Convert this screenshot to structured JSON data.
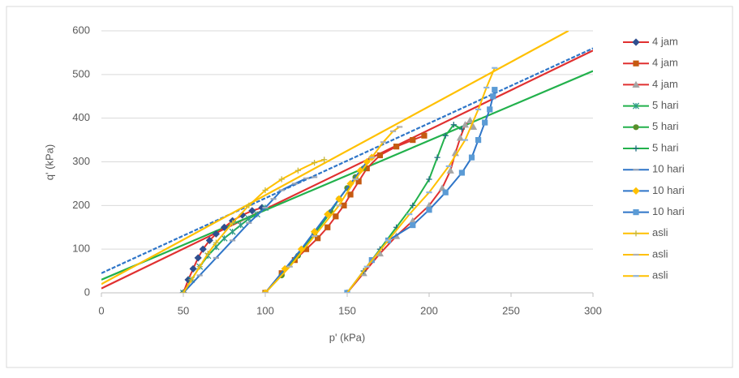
{
  "chart_data": {
    "type": "scatter",
    "xlabel": "p' (kPa)",
    "ylabel": "q' (kPa)",
    "xlim": [
      0,
      300
    ],
    "xticks": [
      0,
      50,
      100,
      150,
      200,
      250,
      300
    ],
    "ylim": [
      0,
      600
    ],
    "yticks": [
      0,
      100,
      200,
      300,
      400,
      500,
      600
    ],
    "grid": true,
    "legend": "right",
    "series": [
      {
        "name": "4 jam",
        "color": "#e03030",
        "marker": "diamond",
        "marker_color": "#2f4f8f",
        "x": [
          50,
          53,
          56,
          59,
          62,
          66,
          70,
          75,
          80,
          86,
          92,
          98
        ],
        "values": [
          0,
          30,
          55,
          80,
          100,
          120,
          135,
          150,
          165,
          178,
          188,
          195
        ]
      },
      {
        "name": "4 jam",
        "color": "#e03030",
        "marker": "square",
        "marker_color": "#c55a11",
        "x": [
          100,
          110,
          118,
          125,
          132,
          138,
          143,
          148,
          152,
          157,
          162,
          170,
          180,
          190,
          197
        ],
        "values": [
          0,
          45,
          75,
          100,
          125,
          150,
          175,
          200,
          225,
          255,
          285,
          315,
          335,
          350,
          360
        ]
      },
      {
        "name": "4 jam",
        "color": "#e03030",
        "marker": "triangle",
        "marker_color": "#a5a5a5",
        "x": [
          150,
          160,
          170,
          180,
          190,
          200,
          208,
          213,
          216,
          219,
          222,
          225,
          227
        ],
        "values": [
          0,
          45,
          90,
          130,
          165,
          200,
          240,
          280,
          320,
          355,
          385,
          395,
          380
        ]
      },
      {
        "name": "5 hari",
        "color": "#22b14c",
        "marker": "star",
        "marker_color": "#2e9a8a",
        "x": [
          50,
          55,
          60,
          65,
          70,
          75,
          80,
          85,
          90,
          95,
          100
        ],
        "values": [
          0,
          30,
          60,
          85,
          105,
          125,
          140,
          155,
          170,
          180,
          195
        ]
      },
      {
        "name": "5 hari",
        "color": "#22b14c",
        "marker": "circle",
        "marker_color": "#5a8f2a",
        "x": [
          100,
          110,
          120,
          130,
          140,
          145,
          150,
          155,
          160
        ],
        "values": [
          0,
          40,
          85,
          135,
          185,
          215,
          240,
          265,
          285
        ]
      },
      {
        "name": "5 hari",
        "color": "#22b14c",
        "marker": "plus",
        "marker_color": "#1f6f7f",
        "x": [
          150,
          160,
          170,
          180,
          190,
          200,
          205,
          210,
          215,
          220
        ],
        "values": [
          0,
          50,
          100,
          150,
          200,
          260,
          310,
          360,
          385,
          375
        ]
      },
      {
        "name": "10 hari",
        "color": "#2e75c8",
        "marker": "dash",
        "marker_color": "#9aa6b8",
        "x": [
          50,
          60,
          70,
          80,
          90,
          100,
          105,
          110,
          118,
          125,
          130
        ],
        "values": [
          0,
          40,
          80,
          120,
          160,
          195,
          215,
          235,
          250,
          262,
          265
        ]
      },
      {
        "name": "10 hari",
        "color": "#2e75c8",
        "marker": "diamond",
        "marker_color": "#ffc000",
        "x": [
          100,
          112,
          122,
          130,
          138,
          145,
          152,
          158,
          162,
          165
        ],
        "values": [
          0,
          55,
          100,
          140,
          180,
          215,
          250,
          280,
          300,
          310
        ]
      },
      {
        "name": "10 hari",
        "color": "#2e75c8",
        "marker": "square",
        "marker_color": "#5b9bd5",
        "x": [
          150,
          165,
          175,
          190,
          200,
          210,
          220,
          226,
          230,
          234,
          237,
          239,
          240
        ],
        "values": [
          0,
          75,
          120,
          155,
          190,
          230,
          275,
          310,
          350,
          390,
          420,
          450,
          465
        ]
      },
      {
        "name": "asli",
        "color": "#ffc000",
        "marker": "plus",
        "marker_color": "#c9b838",
        "x": [
          50,
          55,
          60,
          65,
          70,
          80,
          90,
          100,
          110,
          120,
          130,
          136
        ],
        "values": [
          0,
          30,
          60,
          90,
          115,
          160,
          200,
          235,
          260,
          280,
          298,
          305
        ]
      },
      {
        "name": "asli",
        "color": "#ffc000",
        "marker": "dash",
        "marker_color": "#b0b0b0",
        "x": [
          100,
          115,
          130,
          145,
          155,
          165,
          172,
          178,
          182
        ],
        "values": [
          0,
          60,
          130,
          200,
          260,
          310,
          345,
          370,
          380
        ]
      },
      {
        "name": "asli",
        "color": "#ffc000",
        "marker": "dash",
        "marker_color": "#8fb6e0",
        "x": [
          150,
          162,
          175,
          188,
          200,
          212,
          222,
          230,
          235,
          240
        ],
        "values": [
          0,
          60,
          120,
          180,
          230,
          290,
          350,
          420,
          470,
          515
        ]
      }
    ],
    "trendlines": [
      {
        "color": "#e03030",
        "dashed": false,
        "x": [
          0,
          300
        ],
        "values": [
          10,
          555
        ]
      },
      {
        "color": "#22b14c",
        "dashed": false,
        "x": [
          0,
          300
        ],
        "values": [
          30,
          508
        ]
      },
      {
        "color": "#2e75c8",
        "dashed": true,
        "x": [
          0,
          300
        ],
        "values": [
          45,
          560
        ]
      },
      {
        "color": "#ffc000",
        "dashed": false,
        "x": [
          0,
          285
        ],
        "values": [
          20,
          600
        ]
      }
    ]
  }
}
